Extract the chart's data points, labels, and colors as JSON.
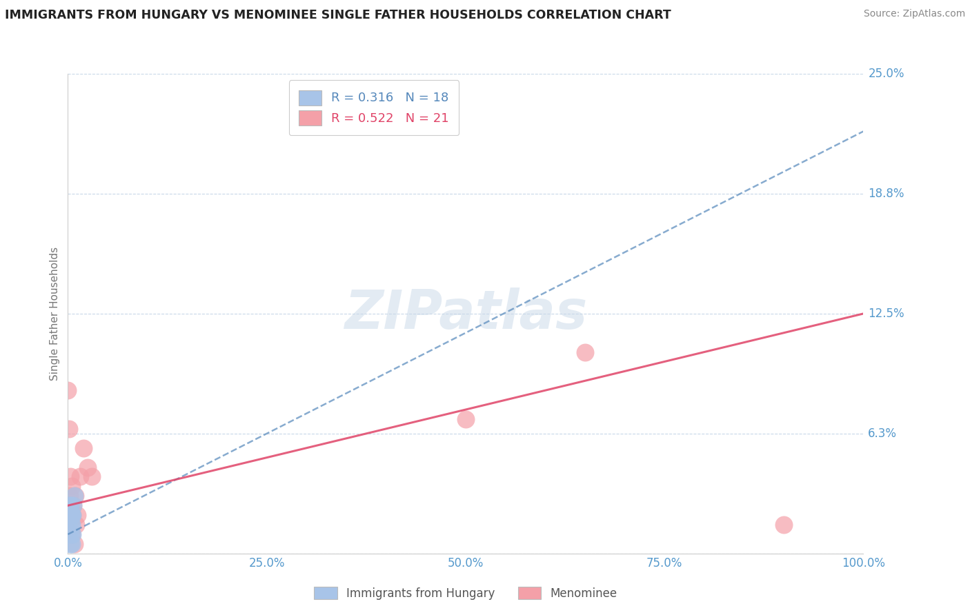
{
  "title": "IMMIGRANTS FROM HUNGARY VS MENOMINEE SINGLE FATHER HOUSEHOLDS CORRELATION CHART",
  "source": "Source: ZipAtlas.com",
  "ylabel": "Single Father Households",
  "watermark": "ZIPatlas",
  "xlim": [
    0.0,
    1.0
  ],
  "ylim": [
    0.0,
    0.25
  ],
  "xtick_labels": [
    "0.0%",
    "25.0%",
    "50.0%",
    "75.0%",
    "100.0%"
  ],
  "xtick_vals": [
    0.0,
    0.25,
    0.5,
    0.75,
    1.0
  ],
  "ytick_labels": [
    "6.3%",
    "12.5%",
    "18.8%",
    "25.0%"
  ],
  "ytick_vals": [
    0.0625,
    0.125,
    0.1875,
    0.25
  ],
  "blue_R": 0.316,
  "blue_N": 18,
  "pink_R": 0.522,
  "pink_N": 21,
  "blue_label": "Immigrants from Hungary",
  "pink_label": "Menominee",
  "blue_color": "#a8c4e8",
  "pink_color": "#f4a0a8",
  "blue_line_color": "#5588bb",
  "pink_line_color": "#e04468",
  "tick_label_color": "#5599cc",
  "background_color": "#ffffff",
  "grid_color": "#c8d8e8",
  "blue_x": [
    0.0,
    0.001,
    0.001,
    0.002,
    0.002,
    0.003,
    0.003,
    0.003,
    0.004,
    0.004,
    0.004,
    0.005,
    0.005,
    0.005,
    0.006,
    0.006,
    0.007,
    0.008
  ],
  "blue_y": [
    0.01,
    0.015,
    0.02,
    0.01,
    0.025,
    0.005,
    0.02,
    0.025,
    0.01,
    0.015,
    0.02,
    0.005,
    0.015,
    0.02,
    0.01,
    0.02,
    0.025,
    0.03
  ],
  "pink_x": [
    0.0,
    0.001,
    0.002,
    0.003,
    0.003,
    0.004,
    0.005,
    0.005,
    0.006,
    0.007,
    0.008,
    0.009,
    0.01,
    0.012,
    0.015,
    0.02,
    0.025,
    0.03,
    0.5,
    0.65,
    0.9
  ],
  "pink_y": [
    0.085,
    0.065,
    0.03,
    0.025,
    0.04,
    0.02,
    0.01,
    0.035,
    0.02,
    0.025,
    0.005,
    0.03,
    0.015,
    0.02,
    0.04,
    0.055,
    0.045,
    0.04,
    0.07,
    0.105,
    0.015
  ],
  "blue_trend_x0": 0.0,
  "blue_trend_x1": 1.0,
  "blue_trend_y0": 0.01,
  "blue_trend_y1": 0.22,
  "pink_trend_x0": 0.0,
  "pink_trend_x1": 1.0,
  "pink_trend_y0": 0.025,
  "pink_trend_y1": 0.125
}
